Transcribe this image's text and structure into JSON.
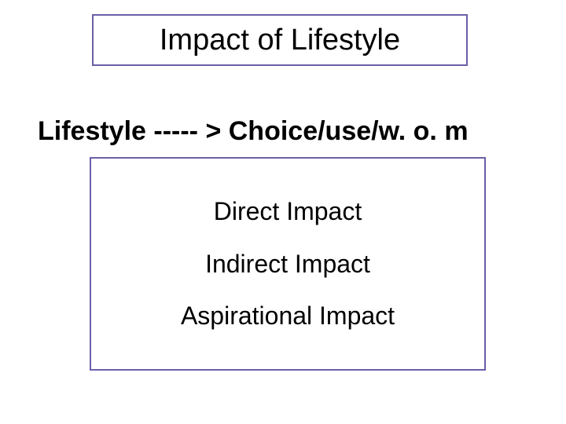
{
  "title": {
    "text": "Impact of Lifestyle",
    "border_color": "#6b5fa8",
    "font_size": 38,
    "text_color": "#000000"
  },
  "subtitle": {
    "text": "Lifestyle ----- > Choice/use/w. o. m",
    "font_size": 34,
    "font_weight": "bold",
    "text_color": "#000000"
  },
  "content_box": {
    "border_color": "#6b5fa8",
    "items": [
      "Direct Impact",
      "Indirect Impact",
      "Aspirational Impact"
    ],
    "font_size": 32,
    "text_color": "#000000"
  },
  "background_color": "#ffffff"
}
